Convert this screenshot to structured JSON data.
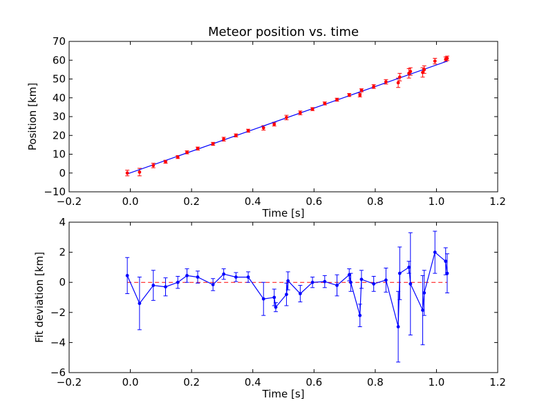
{
  "chart_data": [
    {
      "type": "scatter",
      "title": "Meteor position vs. time",
      "xlabel": "Time [s]",
      "ylabel": "Position [km]",
      "xlim": [
        -0.2,
        1.2
      ],
      "ylim": [
        -10,
        70
      ],
      "xticks": [
        "−0.2",
        "0.0",
        "0.2",
        "0.4",
        "0.6",
        "0.8",
        "1.0",
        "1.2"
      ],
      "yticks": [
        "−10",
        "0",
        "10",
        "20",
        "30",
        "40",
        "50",
        "60",
        "70"
      ],
      "grid": false,
      "colors": {
        "points": "#ff0000",
        "errorbars": "#ff0000",
        "fit": "#0000ff"
      },
      "fit_line": {
        "x": [
          -0.01,
          1.035
        ],
        "y": [
          -0.5,
          59.5
        ]
      },
      "series": [
        {
          "x": [
            -0.01,
            0.03,
            0.075,
            0.115,
            0.155,
            0.185,
            0.22,
            0.27,
            0.305,
            0.345,
            0.385,
            0.435,
            0.47,
            0.51,
            0.555,
            0.595,
            0.635,
            0.675,
            0.715,
            0.75,
            0.755,
            0.795,
            0.835,
            0.875,
            0.88,
            0.91,
            0.915,
            0.955,
            0.96,
            0.995,
            1.03,
            1.035
          ],
          "y": [
            0,
            0.5,
            4,
            6,
            8.5,
            11,
            13,
            15.5,
            18,
            20,
            22.5,
            24,
            26,
            29.5,
            32,
            34,
            37,
            39,
            41.5,
            41.5,
            44,
            46,
            48.5,
            48,
            51,
            53,
            54,
            53.5,
            55,
            59.5,
            60.5,
            61
          ],
          "err": [
            1.5,
            2,
            1.2,
            0.8,
            0.8,
            0.8,
            0.8,
            0.8,
            1,
            0.8,
            0.8,
            1.2,
            1,
            1.2,
            1,
            0.8,
            0.8,
            0.8,
            0.8,
            1,
            0.8,
            1,
            1.2,
            2.5,
            2,
            2.5,
            2,
            2.5,
            2,
            1.5,
            1.2,
            1.2
          ]
        }
      ]
    },
    {
      "type": "line",
      "xlabel": "Time [s]",
      "ylabel": "Fit deviation [km]",
      "xlim": [
        -0.2,
        1.2
      ],
      "ylim": [
        -6,
        4
      ],
      "xticks": [
        "−0.2",
        "0.0",
        "0.2",
        "0.4",
        "0.6",
        "0.8",
        "1.0",
        "1.2"
      ],
      "yticks": [
        "−6",
        "−4",
        "−2",
        "0",
        "2",
        "4"
      ],
      "grid": false,
      "zero_line": {
        "y": 0,
        "style": "dashed",
        "color": "#ff0000"
      },
      "colors": {
        "series": "#0000ff"
      },
      "series": [
        {
          "x": [
            -0.01,
            0.03,
            0.075,
            0.115,
            0.155,
            0.185,
            0.22,
            0.27,
            0.305,
            0.345,
            0.385,
            0.435,
            0.47,
            0.475,
            0.51,
            0.515,
            0.555,
            0.595,
            0.635,
            0.675,
            0.715,
            0.72,
            0.75,
            0.755,
            0.795,
            0.835,
            0.875,
            0.88,
            0.91,
            0.915,
            0.955,
            0.96,
            0.995,
            1.03,
            1.035
          ],
          "y": [
            0.45,
            -1.4,
            -0.2,
            -0.3,
            0.0,
            0.45,
            0.35,
            -0.15,
            0.55,
            0.35,
            0.35,
            -1.1,
            -1.0,
            -1.65,
            -0.8,
            0.1,
            -0.75,
            0.0,
            0.05,
            -0.2,
            0.5,
            0.0,
            -2.2,
            0.2,
            -0.1,
            0.15,
            -2.95,
            0.6,
            1.0,
            -0.1,
            -1.85,
            -0.7,
            2.0,
            1.4,
            0.6
          ],
          "err": [
            1.2,
            1.75,
            1.0,
            0.6,
            0.4,
            0.45,
            0.4,
            0.4,
            0.35,
            0.3,
            0.35,
            1.1,
            0.55,
            0.3,
            0.75,
            0.6,
            0.55,
            0.35,
            0.4,
            0.7,
            0.4,
            0.6,
            0.75,
            0.6,
            0.5,
            0.8,
            2.35,
            1.75,
            0.4,
            3.4,
            2.3,
            1.5,
            1.4,
            0.9,
            1.3
          ]
        }
      ]
    }
  ]
}
